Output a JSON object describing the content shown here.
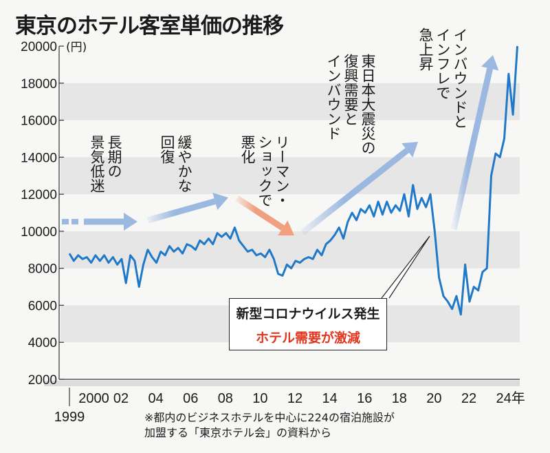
{
  "chart_data": {
    "type": "line",
    "title": "東京のホテル客室単価の推移",
    "ylabel": "(円)",
    "xlabel": "年",
    "ylim": [
      2000,
      20000
    ],
    "xlim": [
      1999,
      2025
    ],
    "y_ticks": [
      "2000",
      "4000",
      "6000",
      "8000",
      "10000",
      "12000",
      "14000",
      "16000",
      "18000",
      "20000"
    ],
    "x_ticks": [
      {
        "year": 1999,
        "label": "1999"
      },
      {
        "year": 2000,
        "label": "2000"
      },
      {
        "year": 2002,
        "label": "02"
      },
      {
        "year": 2004,
        "label": "04"
      },
      {
        "year": 2006,
        "label": "06"
      },
      {
        "year": 2008,
        "label": "08"
      },
      {
        "year": 2010,
        "label": "10"
      },
      {
        "year": 2012,
        "label": "12"
      },
      {
        "year": 2014,
        "label": "14"
      },
      {
        "year": 2016,
        "label": "16"
      },
      {
        "year": 2018,
        "label": "18"
      },
      {
        "year": 2020,
        "label": "20"
      },
      {
        "year": 2022,
        "label": "22"
      },
      {
        "year": 2024,
        "label": "24年"
      }
    ],
    "grid": "alternating bands",
    "series": [
      {
        "name": "客室単価",
        "color": "#1f78c8",
        "x_start": 1999,
        "x_step": 0.25,
        "values": [
          8800,
          8400,
          8700,
          8500,
          8600,
          8300,
          8700,
          8400,
          8700,
          8300,
          8600,
          8200,
          8500,
          7200,
          8700,
          8400,
          7000,
          8200,
          9000,
          8600,
          8300,
          8900,
          8700,
          9200,
          8900,
          9100,
          8800,
          9300,
          9200,
          9000,
          9500,
          9300,
          9600,
          9300,
          9900,
          9700,
          9900,
          9600,
          10200,
          9500,
          9200,
          8900,
          9000,
          8700,
          8800,
          8600,
          9000,
          8500,
          7700,
          7600,
          8200,
          8000,
          8400,
          8300,
          8500,
          8600,
          8500,
          9000,
          8700,
          9300,
          9500,
          9800,
          10200,
          9600,
          10500,
          11000,
          10600,
          11200,
          11000,
          11400,
          10800,
          11600,
          10900,
          11600,
          11000,
          11400,
          11100,
          12000,
          10800,
          12500,
          11200,
          11800,
          11300,
          12000,
          10000,
          7500,
          6500,
          6200,
          5800,
          6500,
          5500,
          8200,
          6200,
          7000,
          6800,
          7800,
          8000,
          13000,
          14200,
          14000,
          15000,
          18500,
          16300,
          20000
        ]
      }
    ],
    "annotations": [
      {
        "lines": [
          "長期の",
          "景気低迷"
        ]
      },
      {
        "lines": [
          "緩やかな",
          "回復"
        ]
      },
      {
        "lines": [
          "リーマン・",
          "ショックで",
          "悪化"
        ]
      },
      {
        "lines": [
          "東日本大震災の",
          "復興需要と",
          "インバウンド"
        ]
      },
      {
        "lines": [
          "インバウンドと",
          "インフレで",
          "急上昇"
        ]
      }
    ],
    "callout": {
      "line1": "新型コロナウイルス発生",
      "line2": "ホテル需要が激減"
    },
    "note": [
      "※都内のビジネスホテルを中心に224の宿泊施設が",
      "加盟する「東京ホテル会」の資料から"
    ]
  }
}
